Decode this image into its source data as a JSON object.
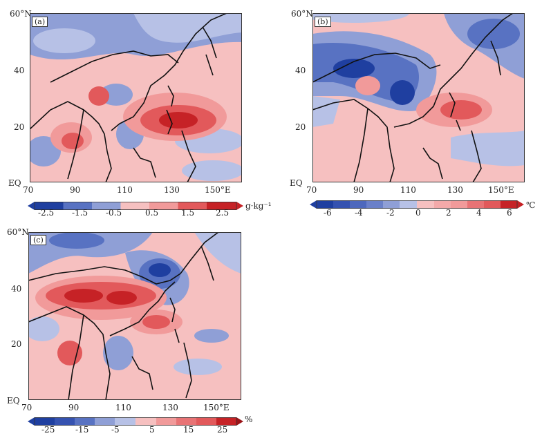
{
  "panels": [
    {
      "id": "a",
      "tag": "(a)",
      "lat_labels": [
        "60°N",
        "40",
        "20",
        "EQ"
      ],
      "lon_labels": [
        "70",
        "90",
        "110",
        "130",
        "150°E"
      ],
      "colorbar": {
        "ticks": [
          "-2.5",
          "-1.5",
          "-0.5",
          "0.5",
          "1.5",
          "2.5"
        ],
        "unit": "g·kg⁻¹"
      }
    },
    {
      "id": "b",
      "tag": "(b)",
      "lat_labels": [
        "60°N",
        "40",
        "20",
        "EQ"
      ],
      "lon_labels": [
        "70",
        "90",
        "110",
        "130",
        "150°E"
      ],
      "colorbar": {
        "ticks": [
          "-6",
          "-4",
          "-2",
          "0",
          "2",
          "4",
          "6"
        ],
        "unit": "℃"
      }
    },
    {
      "id": "c",
      "tag": "(c)",
      "lat_labels": [
        "60°N",
        "40",
        "20",
        "EQ"
      ],
      "lon_labels": [
        "70",
        "90",
        "110",
        "130",
        "150°E"
      ],
      "colorbar": {
        "ticks": [
          "-25",
          "-15",
          "-5",
          "5",
          "15",
          "25"
        ],
        "unit": "%"
      }
    }
  ],
  "colors": {
    "neg_strong": "#1f3fa0",
    "neg_mid": "#5872c2",
    "neg_weak": "#8f9fd6",
    "neg_faint": "#b7c1e6",
    "pos_faint": "#f6c0c0",
    "pos_weak": "#f19a9a",
    "pos_mid": "#e2595b",
    "pos_strong": "#c62226"
  }
}
